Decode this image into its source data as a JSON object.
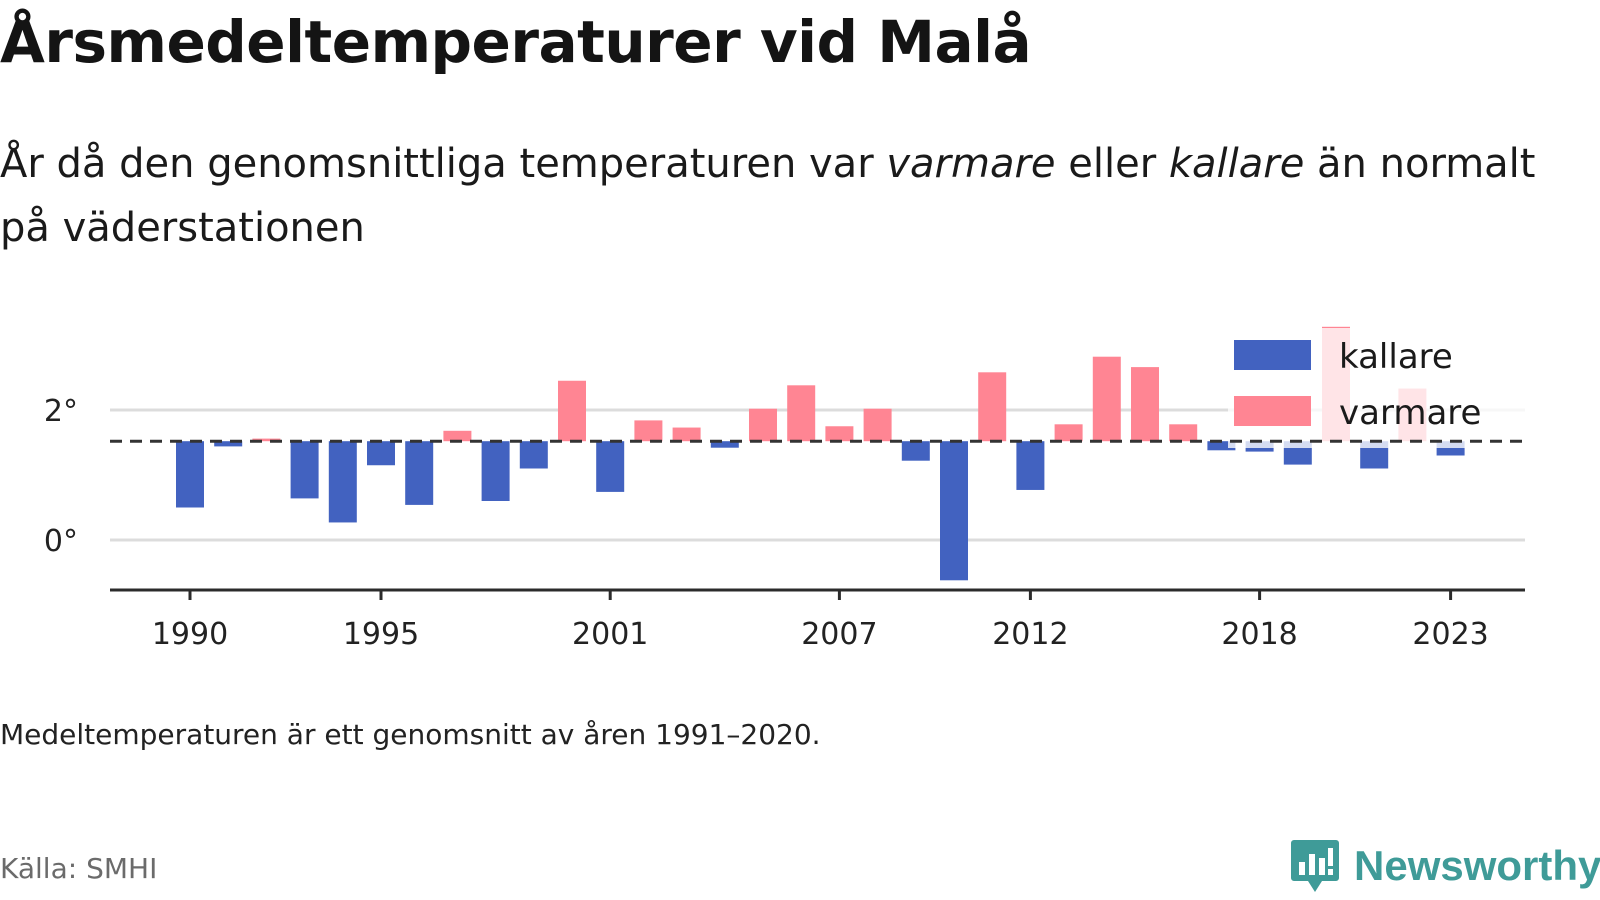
{
  "title": "Årsmedeltemperaturer vid Malå",
  "subtitle": {
    "part1": "År då den genomsnittliga temperaturen var ",
    "warm_word": "varmare",
    "part2": " eller ",
    "cold_word": "kallare",
    "part3": " än normalt på väderstationen"
  },
  "note": "Medeltemperaturen är ett genomsnitt av åren 1991–2020.",
  "source": "Källa: SMHI",
  "brand": {
    "name": "Newsworthy",
    "icon": "bar-chart-bubble-icon",
    "color": "#3f9b98"
  },
  "colors": {
    "kallare": "#4262c0",
    "varmare": "#ff8593"
  },
  "chart_data": {
    "type": "bar",
    "baseline": 1.52,
    "ylim": [
      -0.75,
      3.3
    ],
    "yticks": [
      0,
      2
    ],
    "ytick_labels": [
      "0°",
      "2°"
    ],
    "xticks": [
      1990,
      1995,
      2001,
      2007,
      2012,
      2018,
      2023
    ],
    "legend": [
      {
        "name": "kallare",
        "color": "#4262c0"
      },
      {
        "name": "varmare",
        "color": "#ff8593"
      }
    ],
    "legend_position": "top-right",
    "grid": true,
    "x": [
      1990,
      1991,
      1992,
      1993,
      1994,
      1995,
      1996,
      1997,
      1998,
      1999,
      2000,
      2001,
      2002,
      2003,
      2004,
      2005,
      2006,
      2007,
      2008,
      2009,
      2010,
      2011,
      2012,
      2013,
      2014,
      2015,
      2016,
      2017,
      2018,
      2019,
      2020,
      2021,
      2022,
      2023
    ],
    "values": [
      0.5,
      1.44,
      1.56,
      0.64,
      0.27,
      1.15,
      0.54,
      1.68,
      0.6,
      1.1,
      2.45,
      0.74,
      1.84,
      1.73,
      1.42,
      2.02,
      2.38,
      1.75,
      2.02,
      1.22,
      -0.62,
      2.58,
      0.77,
      1.78,
      2.82,
      2.66,
      1.78,
      1.38,
      1.36,
      1.16,
      3.28,
      1.1,
      2.33,
      1.3
    ]
  }
}
